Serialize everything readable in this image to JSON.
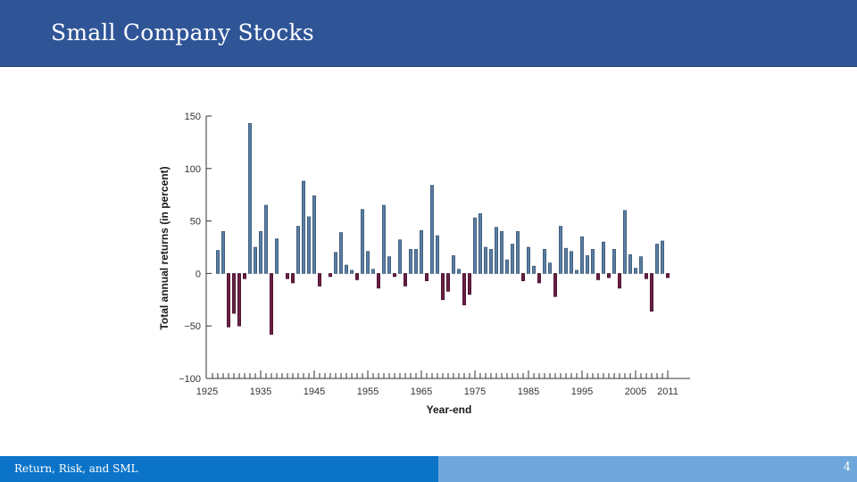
{
  "slide": {
    "title": "Small Company Stocks"
  },
  "footer": {
    "left_text": "Return, Risk, and SML",
    "page_number": "4"
  },
  "colors": {
    "header": "#2f5597",
    "positive_bar": "#5b7fa3",
    "negative_bar": "#6b1f45",
    "footer_left": "#0b74c8",
    "footer_right": "#6fa7dc"
  },
  "chart_data": {
    "type": "bar",
    "xlabel": "Year-end",
    "ylabel": "Total annual returns (in percent)",
    "ylim": [
      -100,
      150
    ],
    "yticks": [
      150,
      100,
      50,
      0,
      -50,
      -100
    ],
    "ytick_labels": [
      "150",
      "100",
      "50",
      "0",
      "−50",
      "−100"
    ],
    "xticks": [
      1925,
      1935,
      1945,
      1955,
      1965,
      1975,
      1985,
      1995,
      2005,
      2011
    ],
    "xtick_labels": [
      "1925",
      "1935",
      "1945",
      "1955",
      "1965",
      "1975",
      "1985",
      "1995",
      "2005",
      "2011"
    ],
    "years": [
      1926,
      1927,
      1928,
      1929,
      1930,
      1931,
      1932,
      1933,
      1934,
      1935,
      1936,
      1937,
      1938,
      1939,
      1940,
      1941,
      1942,
      1943,
      1944,
      1945,
      1946,
      1947,
      1948,
      1949,
      1950,
      1951,
      1952,
      1953,
      1954,
      1955,
      1956,
      1957,
      1958,
      1959,
      1960,
      1961,
      1962,
      1963,
      1964,
      1965,
      1966,
      1967,
      1968,
      1969,
      1970,
      1971,
      1972,
      1973,
      1974,
      1975,
      1976,
      1977,
      1978,
      1979,
      1980,
      1981,
      1982,
      1983,
      1984,
      1985,
      1986,
      1987,
      1988,
      1989,
      1990,
      1991,
      1992,
      1993,
      1994,
      1995,
      1996,
      1997,
      1998,
      1999,
      2000,
      2001,
      2002,
      2003,
      2004,
      2005,
      2006,
      2007,
      2008,
      2009,
      2010,
      2011
    ],
    "values": [
      0,
      22,
      40,
      -51,
      -38,
      -50,
      -5,
      143,
      25,
      40,
      65,
      -58,
      33,
      0,
      -5,
      -9,
      45,
      88,
      54,
      74,
      -12,
      0,
      -3,
      20,
      39,
      8,
      3,
      -6,
      61,
      21,
      4,
      -14,
      65,
      16,
      -3,
      32,
      -12,
      23,
      23,
      41,
      -7,
      84,
      36,
      -25,
      -17,
      17,
      4,
      -30,
      -20,
      53,
      57,
      25,
      23,
      44,
      40,
      13,
      28,
      40,
      -7,
      25,
      7,
      -9,
      23,
      10,
      -22,
      45,
      24,
      21,
      3,
      35,
      17,
      23,
      -6,
      30,
      -4,
      23,
      -14,
      60,
      18,
      5,
      16,
      -5,
      -36,
      28,
      31,
      -4
    ]
  }
}
